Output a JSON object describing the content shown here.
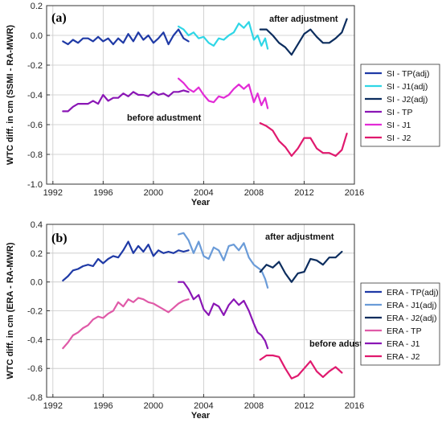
{
  "chart_data": [
    {
      "type": "line",
      "panel_label": "(a)",
      "xlabel": "Year",
      "ylabel": "WTC diff. in cm (SSMI - RA-MWR)",
      "xlim": [
        1991.5,
        2016.0
      ],
      "ylim": [
        -1.0,
        0.2
      ],
      "xticks": [
        1992,
        1996,
        2000,
        2004,
        2008,
        2012,
        2016
      ],
      "yticks": [
        -1.0,
        -0.8,
        -0.6,
        -0.4,
        -0.2,
        0.0,
        0.2
      ],
      "ytick_labels": [
        "-1.0",
        "-0.8",
        "-0.6",
        "-0.4",
        "-0.2",
        "0.0",
        "0.2"
      ],
      "grid": true,
      "legend_position": "right",
      "annotations": [
        {
          "text": "after adjustment",
          "x": 2009.6,
          "y": 0.13
        },
        {
          "text": "before adustment",
          "x": 2000.0,
          "y": -0.53
        }
      ],
      "series": [
        {
          "name": "SI - TP(adj)",
          "color": "#1f3aa6",
          "x": [
            1992.8,
            1993.2,
            1993.6,
            1994.0,
            1994.4,
            1994.8,
            1995.2,
            1995.6,
            1996.0,
            1996.4,
            1996.8,
            1997.2,
            1997.6,
            1998.0,
            1998.4,
            1998.8,
            1999.2,
            1999.6,
            2000.0,
            2000.4,
            2000.8,
            2001.2,
            2001.6,
            2002.0,
            2002.4,
            2002.8
          ],
          "y": [
            -0.04,
            -0.06,
            -0.03,
            -0.05,
            -0.02,
            -0.02,
            -0.04,
            -0.01,
            -0.04,
            -0.02,
            -0.06,
            -0.02,
            -0.05,
            0.01,
            -0.04,
            0.02,
            -0.03,
            0.0,
            -0.05,
            -0.02,
            0.02,
            -0.06,
            0.0,
            0.04,
            -0.02,
            -0.04
          ]
        },
        {
          "name": "SI - J1(adj)",
          "color": "#2fd6e6",
          "x": [
            2002.0,
            2002.4,
            2002.8,
            2003.2,
            2003.6,
            2004.0,
            2004.4,
            2004.8,
            2005.2,
            2005.6,
            2006.0,
            2006.4,
            2006.8,
            2007.2,
            2007.6,
            2008.0,
            2008.3,
            2008.6,
            2008.9,
            2009.1
          ],
          "y": [
            0.06,
            0.04,
            0.0,
            0.02,
            -0.02,
            -0.01,
            -0.05,
            -0.07,
            -0.02,
            -0.03,
            0.0,
            0.02,
            0.08,
            0.05,
            0.09,
            -0.03,
            0.0,
            -0.07,
            -0.02,
            -0.09
          ]
        },
        {
          "name": "SI - J2(adj)",
          "color": "#0c2d5e",
          "x": [
            2008.5,
            2009.0,
            2009.5,
            2010.0,
            2010.5,
            2011.0,
            2011.5,
            2012.0,
            2012.5,
            2013.0,
            2013.5,
            2014.0,
            2014.5,
            2015.0,
            2015.4
          ],
          "y": [
            0.04,
            0.04,
            0.0,
            -0.05,
            -0.08,
            -0.13,
            -0.06,
            0.01,
            0.04,
            -0.01,
            -0.05,
            -0.05,
            -0.02,
            0.02,
            0.11
          ]
        },
        {
          "name": "SI - TP",
          "color": "#8a16b5",
          "x": [
            1992.8,
            1993.2,
            1993.6,
            1994.0,
            1994.4,
            1994.8,
            1995.2,
            1995.6,
            1996.0,
            1996.4,
            1996.8,
            1997.2,
            1997.6,
            1998.0,
            1998.4,
            1998.8,
            1999.2,
            1999.6,
            2000.0,
            2000.4,
            2000.8,
            2001.2,
            2001.6,
            2002.0,
            2002.4,
            2002.8
          ],
          "y": [
            -0.51,
            -0.51,
            -0.48,
            -0.46,
            -0.46,
            -0.46,
            -0.44,
            -0.46,
            -0.4,
            -0.44,
            -0.42,
            -0.42,
            -0.39,
            -0.41,
            -0.38,
            -0.4,
            -0.4,
            -0.41,
            -0.38,
            -0.4,
            -0.39,
            -0.41,
            -0.38,
            -0.38,
            -0.37,
            -0.38
          ]
        },
        {
          "name": "SI - J1",
          "color": "#e22bd6",
          "x": [
            2002.0,
            2002.4,
            2002.8,
            2003.2,
            2003.6,
            2004.0,
            2004.4,
            2004.8,
            2005.2,
            2005.6,
            2006.0,
            2006.4,
            2006.8,
            2007.2,
            2007.6,
            2008.0,
            2008.3,
            2008.6,
            2008.9,
            2009.1
          ],
          "y": [
            -0.29,
            -0.32,
            -0.36,
            -0.38,
            -0.35,
            -0.4,
            -0.44,
            -0.45,
            -0.41,
            -0.42,
            -0.4,
            -0.36,
            -0.33,
            -0.36,
            -0.33,
            -0.45,
            -0.39,
            -0.47,
            -0.42,
            -0.49
          ]
        },
        {
          "name": "SI - J2",
          "color": "#e0196e",
          "x": [
            2008.5,
            2009.0,
            2009.5,
            2010.0,
            2010.5,
            2011.0,
            2011.5,
            2012.0,
            2012.5,
            2013.0,
            2013.5,
            2014.0,
            2014.5,
            2015.0,
            2015.4
          ],
          "y": [
            -0.59,
            -0.61,
            -0.64,
            -0.71,
            -0.75,
            -0.81,
            -0.76,
            -0.69,
            -0.69,
            -0.76,
            -0.79,
            -0.79,
            -0.81,
            -0.77,
            -0.66
          ]
        }
      ]
    },
    {
      "type": "line",
      "panel_label": "(b)",
      "xlabel": "Year",
      "ylabel": "WTC diff. in cm (ERA - RA-MWR)",
      "xlim": [
        1991.5,
        2016.0
      ],
      "ylim": [
        -0.8,
        0.4
      ],
      "xticks": [
        1992,
        1996,
        2000,
        2004,
        2008,
        2012,
        2016
      ],
      "yticks": [
        -0.8,
        -0.6,
        -0.4,
        -0.2,
        0.0,
        0.2,
        0.4
      ],
      "ytick_labels": [
        "-0.8",
        "-0.6",
        "-0.4",
        "-0.2",
        "0.0",
        "0.2",
        "0.4"
      ],
      "grid": true,
      "legend_position": "right",
      "annotations": [
        {
          "text": "after adjustment",
          "x": 2009.6,
          "y": 0.33
        },
        {
          "text": "before adustment",
          "x": 2011.8,
          "y": -0.46
        }
      ],
      "series": [
        {
          "name": "ERA - TP(adj)",
          "color": "#1f3aa6",
          "x": [
            1992.8,
            1993.2,
            1993.6,
            1994.0,
            1994.4,
            1994.8,
            1995.2,
            1995.6,
            1996.0,
            1996.4,
            1996.8,
            1997.2,
            1997.6,
            1998.0,
            1998.4,
            1998.8,
            1999.2,
            1999.6,
            2000.0,
            2000.4,
            2000.8,
            2001.2,
            2001.6,
            2002.0,
            2002.4,
            2002.8
          ],
          "y": [
            0.01,
            0.04,
            0.08,
            0.09,
            0.11,
            0.12,
            0.11,
            0.16,
            0.13,
            0.16,
            0.18,
            0.17,
            0.22,
            0.28,
            0.2,
            0.25,
            0.21,
            0.26,
            0.18,
            0.22,
            0.2,
            0.21,
            0.2,
            0.22,
            0.21,
            0.22
          ]
        },
        {
          "name": "ERA - J1(adj)",
          "color": "#6a9bd8",
          "x": [
            2002.0,
            2002.4,
            2002.8,
            2003.2,
            2003.6,
            2004.0,
            2004.4,
            2004.8,
            2005.2,
            2005.6,
            2006.0,
            2006.4,
            2006.8,
            2007.2,
            2007.6,
            2008.0,
            2008.3,
            2008.6,
            2008.9,
            2009.1
          ],
          "y": [
            0.33,
            0.34,
            0.29,
            0.2,
            0.28,
            0.18,
            0.16,
            0.24,
            0.22,
            0.15,
            0.25,
            0.26,
            0.22,
            0.27,
            0.17,
            0.12,
            0.1,
            0.08,
            0.02,
            -0.04
          ]
        },
        {
          "name": "ERA - J2(adj)",
          "color": "#0c2d5e",
          "x": [
            2008.5,
            2009.0,
            2009.5,
            2010.0,
            2010.5,
            2011.0,
            2011.5,
            2012.0,
            2012.5,
            2013.0,
            2013.5,
            2014.0,
            2014.5,
            2015.0
          ],
          "y": [
            0.07,
            0.12,
            0.1,
            0.14,
            0.06,
            0.0,
            0.06,
            0.07,
            0.16,
            0.15,
            0.12,
            0.17,
            0.17,
            0.21
          ]
        },
        {
          "name": "ERA - TP",
          "color": "#e05aa8",
          "x": [
            1992.8,
            1993.2,
            1993.6,
            1994.0,
            1994.4,
            1994.8,
            1995.2,
            1995.6,
            1996.0,
            1996.4,
            1996.8,
            1997.2,
            1997.6,
            1998.0,
            1998.4,
            1998.8,
            1999.2,
            1999.6,
            2000.0,
            2000.4,
            2000.8,
            2001.2,
            2001.6,
            2002.0,
            2002.4,
            2002.8
          ],
          "y": [
            -0.46,
            -0.42,
            -0.37,
            -0.35,
            -0.32,
            -0.3,
            -0.26,
            -0.24,
            -0.25,
            -0.22,
            -0.2,
            -0.14,
            -0.17,
            -0.12,
            -0.14,
            -0.11,
            -0.12,
            -0.14,
            -0.15,
            -0.17,
            -0.19,
            -0.21,
            -0.18,
            -0.15,
            -0.13,
            -0.12
          ]
        },
        {
          "name": "ERA - J1",
          "color": "#8a16b5",
          "x": [
            2002.0,
            2002.4,
            2002.8,
            2003.2,
            2003.6,
            2004.0,
            2004.4,
            2004.8,
            2005.2,
            2005.6,
            2006.0,
            2006.4,
            2006.8,
            2007.2,
            2007.6,
            2008.0,
            2008.3,
            2008.6,
            2008.9,
            2009.1
          ],
          "y": [
            0.0,
            0.0,
            -0.05,
            -0.12,
            -0.09,
            -0.19,
            -0.23,
            -0.15,
            -0.17,
            -0.23,
            -0.16,
            -0.12,
            -0.16,
            -0.13,
            -0.2,
            -0.29,
            -0.35,
            -0.37,
            -0.41,
            -0.46
          ]
        },
        {
          "name": "ERA - J2",
          "color": "#e0196e",
          "x": [
            2008.5,
            2009.0,
            2009.5,
            2010.0,
            2010.5,
            2011.0,
            2011.5,
            2012.0,
            2012.5,
            2013.0,
            2013.5,
            2014.0,
            2014.5,
            2015.0
          ],
          "y": [
            -0.54,
            -0.51,
            -0.51,
            -0.52,
            -0.6,
            -0.67,
            -0.65,
            -0.6,
            -0.55,
            -0.62,
            -0.66,
            -0.62,
            -0.59,
            -0.63
          ]
        }
      ]
    }
  ]
}
